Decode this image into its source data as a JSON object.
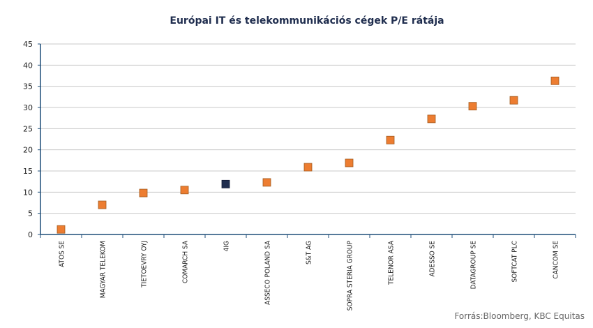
{
  "chart_data": {
    "type": "scatter",
    "title": "Európai IT és telekommunikációs cégek P/E rátája",
    "categories": [
      "ATOS SE",
      "MAGYAR TELEKOM",
      "TIETOEVRY OYJ",
      "COMARCH SA",
      "4IG",
      "ASSECO POLAND SA",
      "S&T AG",
      "SOPRA STERIA GROUP",
      "TELENOR ASA",
      "ADESSO SE",
      "DATAGROUP SE",
      "SOFTCAT PLC",
      "CANCOM SE"
    ],
    "series": [
      {
        "values": [
          1.2,
          7.0,
          9.8,
          10.5,
          11.9,
          12.3,
          15.9,
          16.9,
          22.3,
          27.3,
          30.3,
          31.7,
          36.3
        ]
      }
    ],
    "highlight_index": 4,
    "colors": {
      "default": "#ed7d31",
      "highlight": "#1f2d4e",
      "marker_border": "#a05a1f",
      "highlight_border": "#0f1a33"
    },
    "ylim": [
      0,
      45
    ],
    "yticks": [
      0,
      5,
      10,
      15,
      20,
      25,
      30,
      35,
      40,
      45
    ],
    "xlabel": "",
    "ylabel": "",
    "grid": true
  },
  "source": "Forrás:Bloomberg,  KBC Equitas"
}
